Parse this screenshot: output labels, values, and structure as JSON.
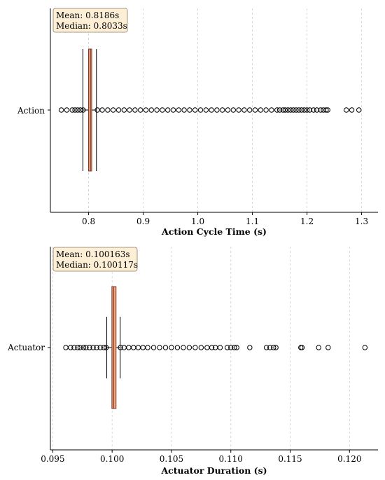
{
  "chart_data": [
    {
      "type": "boxplot",
      "orientation": "horizontal",
      "category": "Action",
      "xlabel": "Action Cycle Time (s)",
      "xlim": [
        0.73,
        1.33
      ],
      "xticks": [
        0.8,
        0.9,
        1.0,
        1.1,
        1.2,
        1.3
      ],
      "xtick_labels": [
        "0.8",
        "0.9",
        "1.0",
        "1.1",
        "1.2",
        "1.3"
      ],
      "grid": true,
      "box_color": "#f4a582",
      "box": {
        "whisker_low": 0.7895,
        "q1": 0.7999,
        "median": 0.8033,
        "q3": 0.8056,
        "whisker_high": 0.8143
      },
      "outliers": [
        0.75,
        0.76,
        0.77,
        0.775,
        0.78,
        0.785,
        0.79,
        0.816,
        0.825,
        0.835,
        0.845,
        0.855,
        0.865,
        0.875,
        0.885,
        0.895,
        0.905,
        0.915,
        0.925,
        0.935,
        0.945,
        0.955,
        0.965,
        0.975,
        0.985,
        0.995,
        1.005,
        1.015,
        1.025,
        1.035,
        1.045,
        1.055,
        1.065,
        1.075,
        1.085,
        1.095,
        1.105,
        1.115,
        1.125,
        1.135,
        1.145,
        1.15,
        1.156,
        1.16,
        1.165,
        1.17,
        1.175,
        1.18,
        1.185,
        1.19,
        1.195,
        1.2,
        1.205,
        1.212,
        1.218,
        1.225,
        1.23,
        1.235,
        1.238,
        1.272,
        1.282,
        1.295
      ],
      "stats": {
        "mean": "Mean: 0.8186s",
        "median": "Median: 0.8033s"
      }
    },
    {
      "type": "boxplot",
      "orientation": "horizontal",
      "category": "Actuator",
      "xlabel": "Actuator Duration (s)",
      "xlim": [
        0.0948,
        0.1224
      ],
      "xticks": [
        0.095,
        0.1,
        0.105,
        0.11,
        0.115,
        0.12
      ],
      "xtick_labels": [
        "0.095",
        "0.100",
        "0.105",
        "0.110",
        "0.115",
        "0.120"
      ],
      "grid": true,
      "box_color": "#f4a582",
      "box": {
        "whisker_low": 0.09955,
        "q1": 0.09998,
        "median": 0.100117,
        "q3": 0.10033,
        "whisker_high": 0.10068
      },
      "outliers": [
        0.0961,
        0.0965,
        0.0968,
        0.0971,
        0.0973,
        0.0976,
        0.0978,
        0.0981,
        0.0984,
        0.0987,
        0.099,
        0.0993,
        0.0995,
        0.1007,
        0.101,
        0.1014,
        0.1018,
        0.1022,
        0.1026,
        0.103,
        0.1035,
        0.104,
        0.1045,
        0.105,
        0.1055,
        0.106,
        0.1065,
        0.107,
        0.1075,
        0.108,
        0.1084,
        0.1087,
        0.1091,
        0.1097,
        0.11,
        0.1103,
        0.1105,
        0.1116,
        0.113,
        0.1133,
        0.1136,
        0.1138,
        0.1159,
        0.116,
        0.1174,
        0.1182,
        0.1213
      ],
      "stats": {
        "mean": "Mean: 0.100163s",
        "median": "Median: 0.100117s"
      }
    }
  ]
}
